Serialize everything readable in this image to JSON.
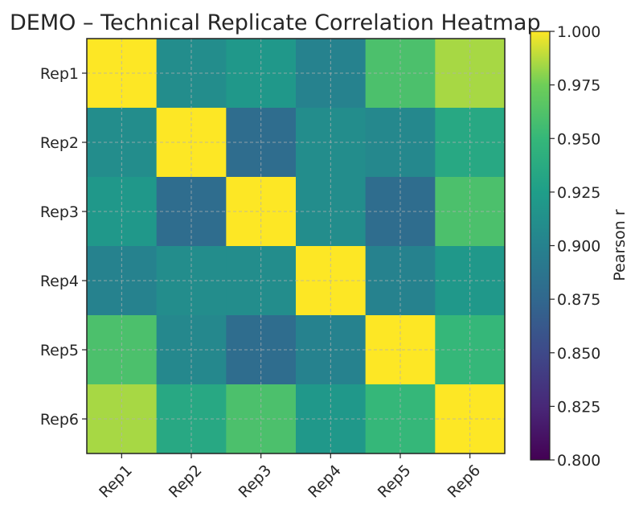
{
  "chart_data": {
    "type": "heatmap",
    "title": "DEMO – Technical Replicate Correlation Heatmap",
    "rows": [
      "Rep1",
      "Rep2",
      "Rep3",
      "Rep4",
      "Rep5",
      "Rep6"
    ],
    "columns": [
      "Rep1",
      "Rep2",
      "Rep3",
      "Rep4",
      "Rep5",
      "Rep6"
    ],
    "values": [
      [
        1.0,
        0.91,
        0.92,
        0.9,
        0.96,
        0.985
      ],
      [
        0.91,
        1.0,
        0.88,
        0.91,
        0.905,
        0.935
      ],
      [
        0.92,
        0.88,
        1.0,
        0.91,
        0.88,
        0.96
      ],
      [
        0.9,
        0.91,
        0.91,
        1.0,
        0.9,
        0.92
      ],
      [
        0.96,
        0.905,
        0.88,
        0.9,
        1.0,
        0.95
      ],
      [
        0.985,
        0.935,
        0.96,
        0.92,
        0.95,
        1.0
      ]
    ],
    "colorbar": {
      "label": "Pearson r",
      "min": 0.8,
      "max": 1.0,
      "ticks": [
        "0.800",
        "0.825",
        "0.850",
        "0.875",
        "0.900",
        "0.925",
        "0.950",
        "0.975",
        "1.000"
      ]
    },
    "colormap": "viridis",
    "grid": true
  }
}
